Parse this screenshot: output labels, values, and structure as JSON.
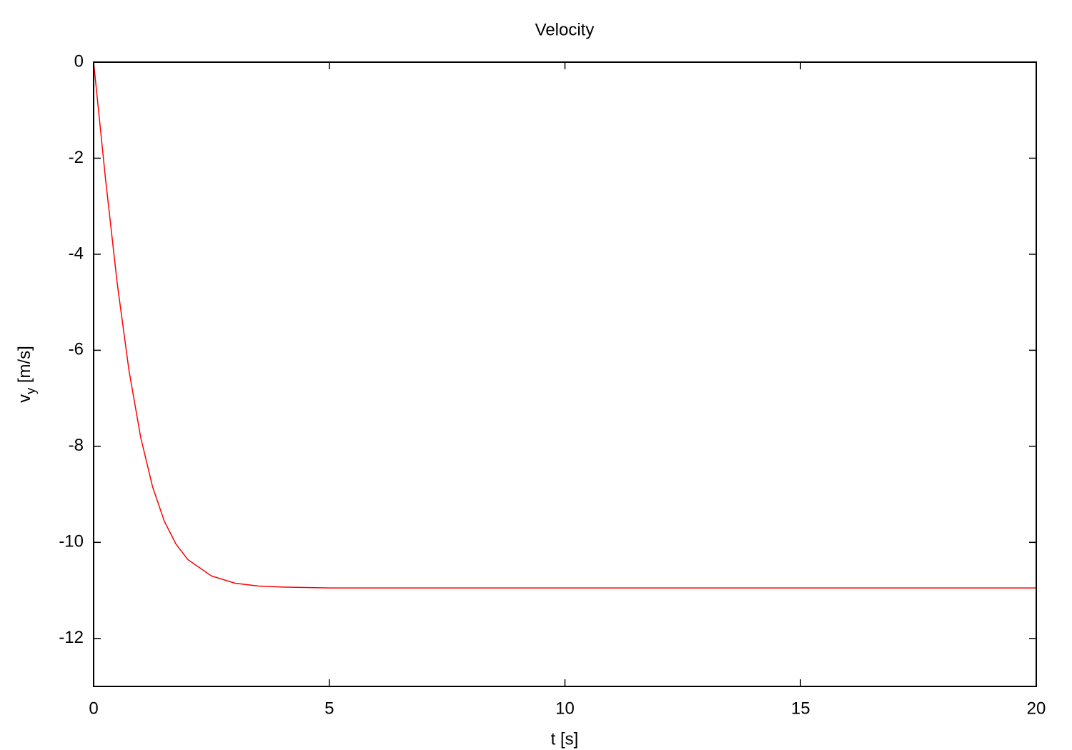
{
  "chart_data": {
    "type": "line",
    "title": "Velocity",
    "xlabel": "t [s]",
    "ylabel": [
      "v",
      "y",
      " [m/s]"
    ],
    "x": [
      0,
      0.25,
      0.5,
      0.75,
      1,
      1.25,
      1.5,
      1.75,
      2,
      2.5,
      3,
      3.5,
      4,
      5,
      10,
      15,
      20
    ],
    "values": [
      0,
      -2.41,
      -4.6,
      -6.42,
      -7.82,
      -8.84,
      -9.56,
      -10.04,
      -10.36,
      -10.7,
      -10.85,
      -10.91,
      -10.93,
      -10.95,
      -10.95,
      -10.95,
      -10.95
    ],
    "color": "#ff0000",
    "xlim": [
      0,
      20
    ],
    "xticks": [
      0,
      5,
      10,
      15,
      20
    ],
    "ylim": [
      -13,
      0
    ],
    "yticks": [
      0,
      -2,
      -4,
      -6,
      -8,
      -10,
      -12
    ],
    "grid": false
  }
}
